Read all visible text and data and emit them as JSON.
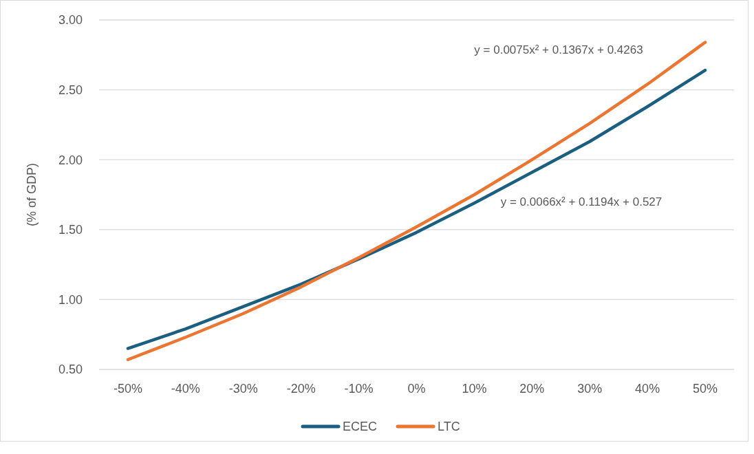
{
  "chart_data": {
    "type": "line",
    "ylabel": "(% of GDP)",
    "categories": [
      "-50%",
      "-40%",
      "-30%",
      "-20%",
      "-10%",
      "0%",
      "10%",
      "20%",
      "30%",
      "40%",
      "50%"
    ],
    "series": [
      {
        "name": "ECEC",
        "color": "#1a5e82",
        "values": [
          0.65,
          0.79,
          0.95,
          1.11,
          1.29,
          1.48,
          1.69,
          1.91,
          2.13,
          2.38,
          2.64
        ]
      },
      {
        "name": "LTC",
        "color": "#ed7532",
        "values": [
          0.57,
          0.73,
          0.9,
          1.09,
          1.3,
          1.52,
          1.75,
          2.0,
          2.26,
          2.54,
          2.84
        ]
      }
    ],
    "ylim": [
      0.5,
      3.0
    ],
    "yticks": [
      {
        "value": 0.5,
        "label": "0.50"
      },
      {
        "value": 1.0,
        "label": "1.00"
      },
      {
        "value": 1.5,
        "label": "1.50"
      },
      {
        "value": 2.0,
        "label": "2.00"
      },
      {
        "value": 2.5,
        "label": "2.50"
      },
      {
        "value": 3.0,
        "label": "3.00"
      }
    ],
    "grid": "y",
    "legend": "bottom",
    "marker": "none",
    "line_style": "solid",
    "annotations": [
      "y = 0.0075x² + 0.1367x + 0.4263",
      "y = 0.0066x² + 0.1194x + 0.527"
    ]
  }
}
